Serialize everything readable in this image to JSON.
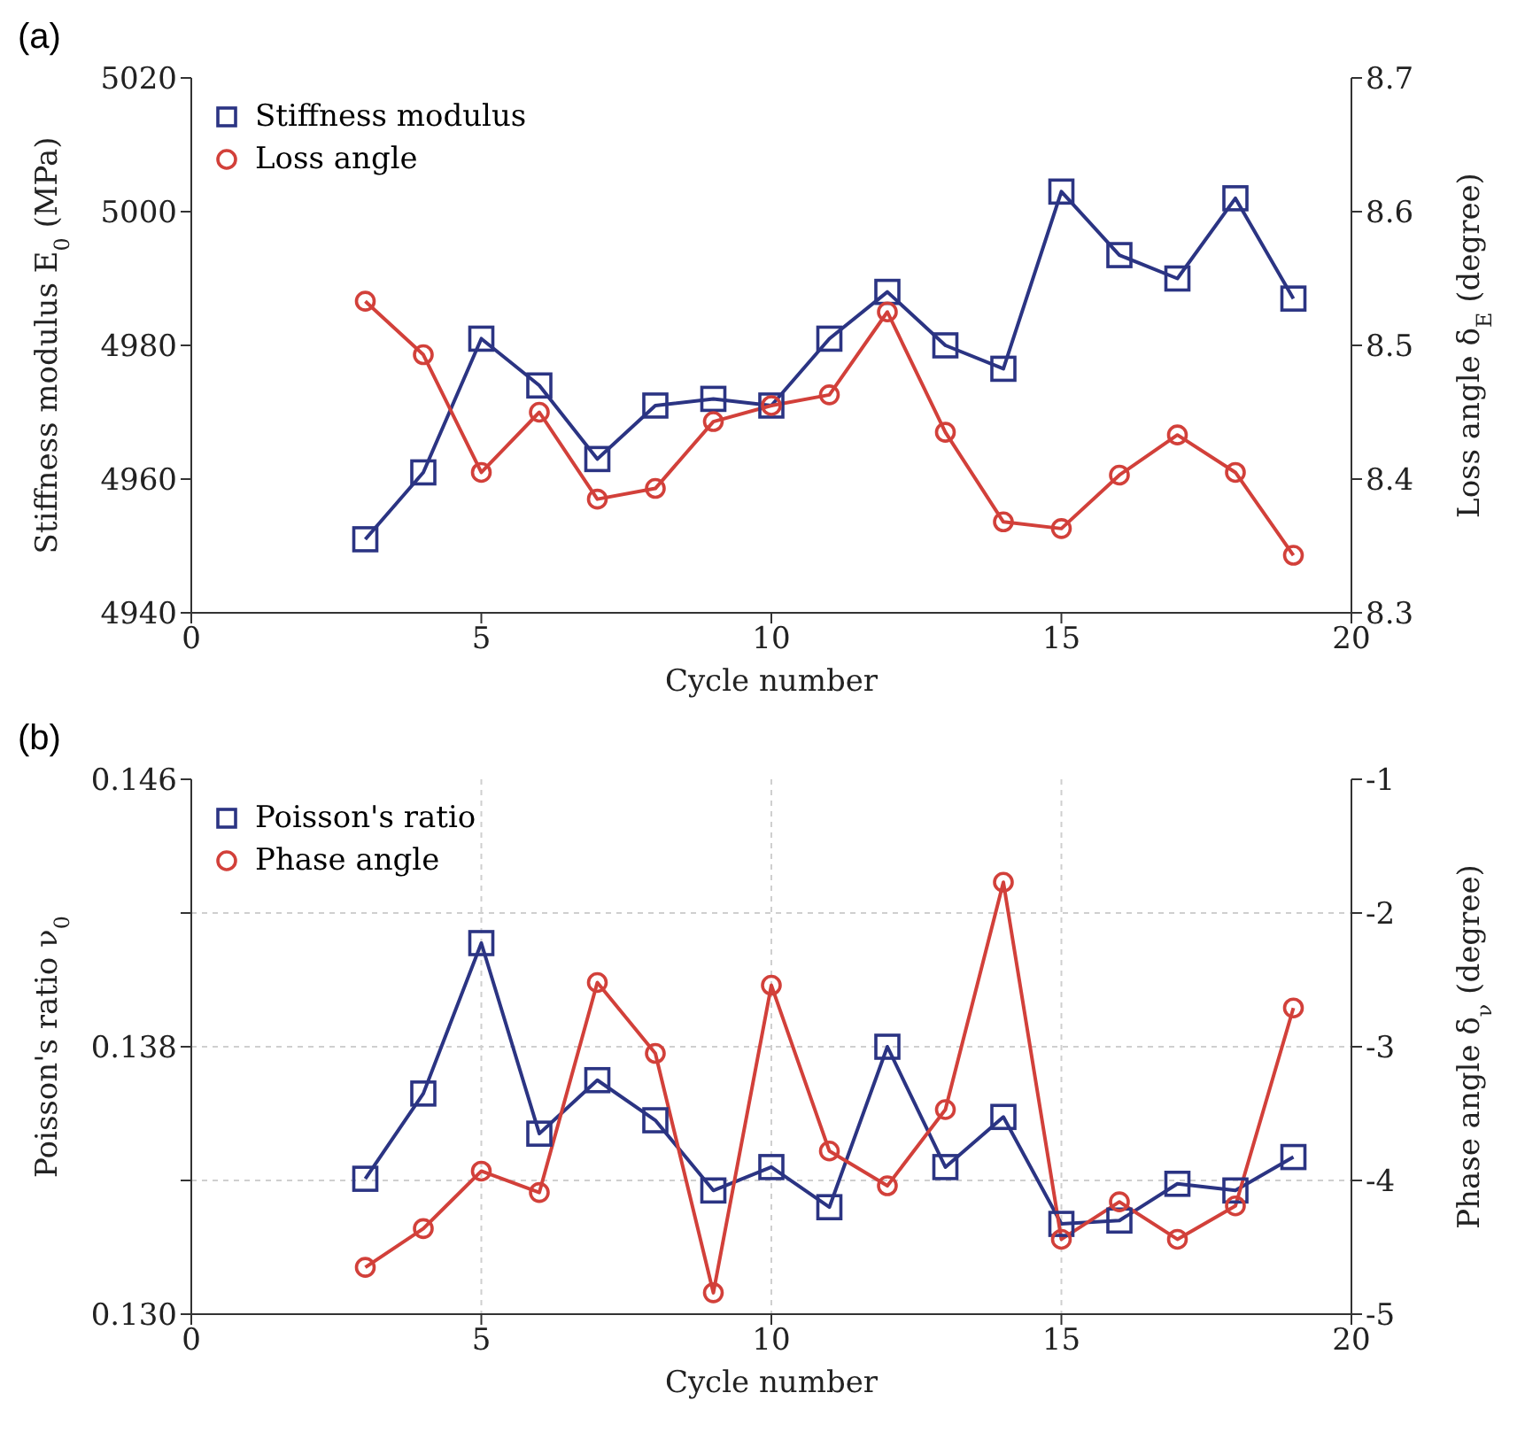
{
  "chart_data": [
    {
      "type": "line",
      "title": "(a)",
      "xlabel": "Cycle number",
      "ylabel": "Stiffness modulus E$_{0}$ (MPa)",
      "y2label": "Loss angle δ$_{E}$ (degree)",
      "x": [
        3,
        4,
        5,
        6,
        7,
        8,
        9,
        10,
        11,
        12,
        13,
        14,
        15,
        16,
        17,
        18,
        19
      ],
      "xlim": [
        0,
        20
      ],
      "xticks": [
        0,
        5,
        10,
        15,
        20
      ],
      "ylim": [
        4940,
        5020
      ],
      "yticks": [
        4940,
        4960,
        4980,
        5000,
        5020
      ],
      "y2lim": [
        8.3,
        8.7
      ],
      "y2ticks": [
        8.3,
        8.4,
        8.5,
        8.6,
        8.7
      ],
      "grid": false,
      "legend": "top left",
      "series": [
        {
          "name": "Stiffness modulus",
          "color": "#2b3483",
          "marker": "square",
          "values": [
            4951,
            4961,
            4981,
            4974,
            4963,
            4971,
            4972,
            4971,
            4981,
            4988,
            4980,
            4976.5,
            5003,
            4993.5,
            4990,
            5002,
            4987
          ]
        },
        {
          "name": "Loss angle",
          "color": "#d2403a",
          "marker": "circle",
          "axis": "y2",
          "values": [
            8.533,
            8.493,
            8.405,
            8.45,
            8.385,
            8.393,
            8.443,
            8.455,
            8.463,
            8.525,
            8.435,
            8.368,
            8.363,
            8.403,
            8.433,
            8.405,
            8.343
          ]
        }
      ]
    },
    {
      "type": "line",
      "title": "(b)",
      "xlabel": "Cycle number",
      "ylabel": "Poisson's ratio ν$_{0}$",
      "y2label": "Phase angle δ$_{ν}$ (degree)",
      "x": [
        3,
        4,
        5,
        6,
        7,
        8,
        9,
        10,
        11,
        12,
        13,
        14,
        15,
        16,
        17,
        18,
        19
      ],
      "xlim": [
        0,
        20
      ],
      "xticks": [
        0,
        5,
        10,
        15,
        20
      ],
      "ylim": [
        0.13,
        0.146
      ],
      "yticks": [
        {
          "value": 0.13,
          "label": "0.130"
        },
        {
          "value": 0.134,
          "label": null
        },
        {
          "value": 0.138,
          "label": "0.138"
        },
        {
          "value": 0.142,
          "label": null
        },
        {
          "value": 0.146,
          "label": "0.146"
        }
      ],
      "y2lim": [
        -5,
        -1
      ],
      "y2ticks": [
        -5,
        -4,
        -3,
        -2,
        -1
      ],
      "grid": true,
      "legend": "top left",
      "series": [
        {
          "name": "Poisson's ratio",
          "color": "#2b3483",
          "marker": "square",
          "values": [
            0.13405,
            0.1366,
            0.1411,
            0.1354,
            0.137,
            0.1358,
            0.1337,
            0.1344,
            0.1332,
            0.138,
            0.1344,
            0.1359,
            0.1327,
            0.1328,
            0.1339,
            0.1337,
            0.1347
          ]
        },
        {
          "name": "Phase angle",
          "color": "#d2403a",
          "marker": "circle",
          "axis": "y2",
          "values": [
            -4.65,
            -4.36,
            -3.93,
            -4.09,
            -2.52,
            -3.05,
            -4.84,
            -2.54,
            -3.78,
            -4.04,
            -3.47,
            -1.77,
            -4.44,
            -4.16,
            -4.44,
            -4.19,
            -2.71
          ]
        }
      ]
    }
  ]
}
